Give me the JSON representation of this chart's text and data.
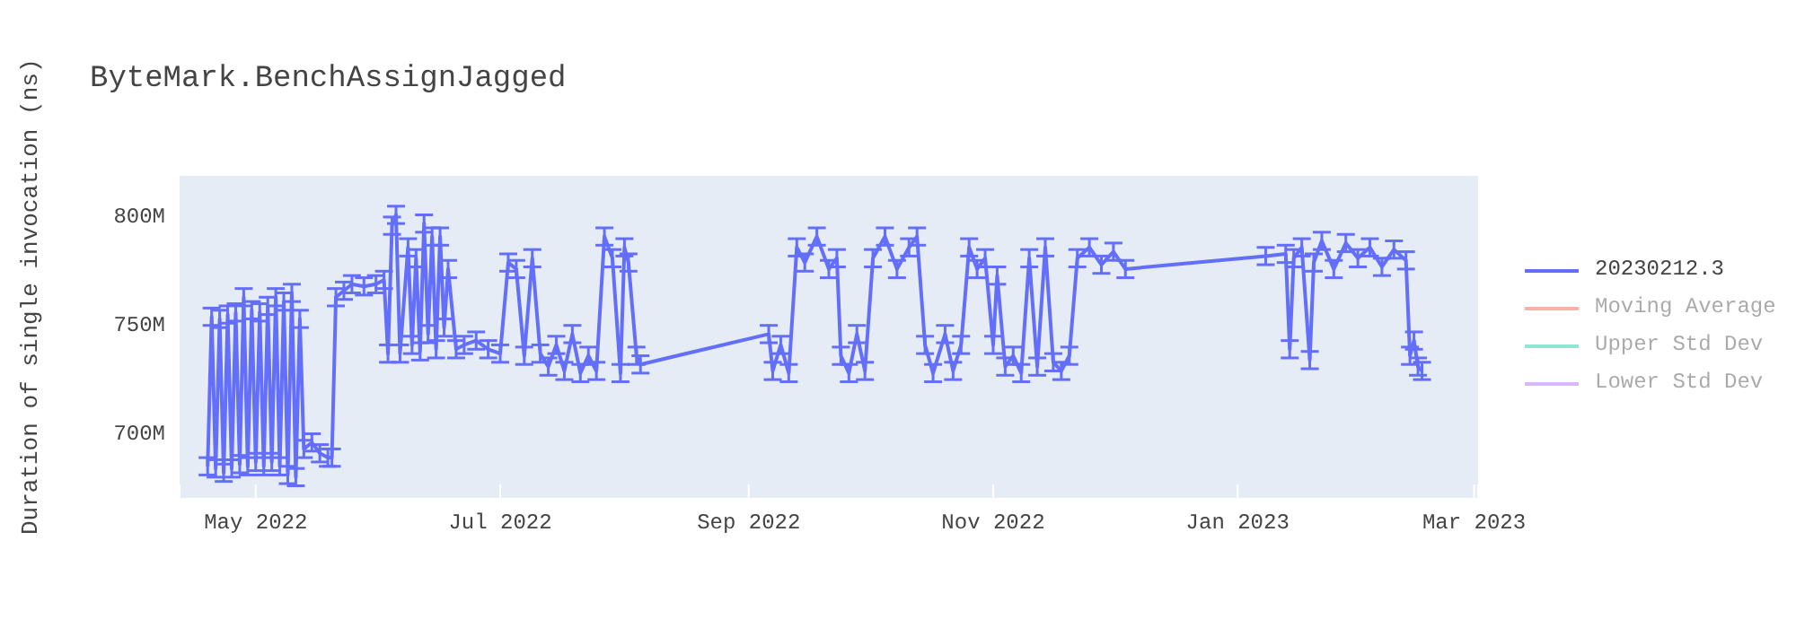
{
  "chart_data": {
    "type": "line",
    "title": "ByteMark.BenchAssignJagged",
    "ylabel": "Duration of single invocation (ns)",
    "x": [
      "2022-04-19",
      "2022-04-20",
      "2022-04-21",
      "2022-04-22",
      "2022-04-23",
      "2022-04-24",
      "2022-04-25",
      "2022-04-26",
      "2022-04-27",
      "2022-04-28",
      "2022-04-29",
      "2022-04-30",
      "2022-05-01",
      "2022-05-02",
      "2022-05-03",
      "2022-05-04",
      "2022-05-05",
      "2022-05-06",
      "2022-05-07",
      "2022-05-08",
      "2022-05-09",
      "2022-05-10",
      "2022-05-11",
      "2022-05-12",
      "2022-05-13",
      "2022-05-15",
      "2022-05-17",
      "2022-05-19",
      "2022-05-20",
      "2022-05-21",
      "2022-05-23",
      "2022-05-25",
      "2022-05-28",
      "2022-05-31",
      "2022-06-02",
      "2022-06-03",
      "2022-06-04",
      "2022-06-05",
      "2022-06-06",
      "2022-06-08",
      "2022-06-09",
      "2022-06-10",
      "2022-06-11",
      "2022-06-12",
      "2022-06-13",
      "2022-06-14",
      "2022-06-15",
      "2022-06-16",
      "2022-06-17",
      "2022-06-18",
      "2022-06-20",
      "2022-06-22",
      "2022-06-25",
      "2022-06-28",
      "2022-07-01",
      "2022-07-03",
      "2022-07-05",
      "2022-07-07",
      "2022-07-09",
      "2022-07-11",
      "2022-07-13",
      "2022-07-15",
      "2022-07-17",
      "2022-07-19",
      "2022-07-21",
      "2022-07-23",
      "2022-07-25",
      "2022-07-27",
      "2022-07-29",
      "2022-07-31",
      "2022-08-01",
      "2022-08-02",
      "2022-08-04",
      "2022-08-05",
      "2022-09-06",
      "2022-09-07",
      "2022-09-09",
      "2022-09-11",
      "2022-09-13",
      "2022-09-15",
      "2022-09-18",
      "2022-09-21",
      "2022-09-23",
      "2022-09-24",
      "2022-09-26",
      "2022-09-28",
      "2022-09-30",
      "2022-10-02",
      "2022-10-05",
      "2022-10-08",
      "2022-10-11",
      "2022-10-13",
      "2022-10-15",
      "2022-10-17",
      "2022-10-20",
      "2022-10-22",
      "2022-10-24",
      "2022-10-26",
      "2022-10-28",
      "2022-10-30",
      "2022-11-01",
      "2022-11-02",
      "2022-11-04",
      "2022-11-06",
      "2022-11-08",
      "2022-11-10",
      "2022-11-12",
      "2022-11-14",
      "2022-11-16",
      "2022-11-18",
      "2022-11-20",
      "2022-11-22",
      "2022-11-25",
      "2022-11-28",
      "2022-12-01",
      "2022-12-04",
      "2023-01-08",
      "2023-01-13",
      "2023-01-14",
      "2023-01-15",
      "2023-01-17",
      "2023-01-19",
      "2023-01-20",
      "2023-01-22",
      "2023-01-25",
      "2023-01-28",
      "2023-01-31",
      "2023-02-03",
      "2023-02-06",
      "2023-02-09",
      "2023-02-12",
      "2023-02-13",
      "2023-02-14",
      "2023-02-15",
      "2023-02-16"
    ],
    "series": [
      {
        "name": "20230212.3",
        "color": "#636efa",
        "values": [
          684000000,
          753000000,
          683000000,
          752000000,
          681000000,
          754000000,
          683000000,
          755000000,
          685000000,
          762000000,
          684000000,
          756000000,
          686000000,
          755000000,
          684000000,
          758000000,
          686000000,
          762000000,
          684000000,
          760000000,
          680000000,
          764000000,
          679000000,
          752000000,
          692000000,
          695000000,
          690000000,
          688000000,
          688000000,
          762000000,
          765000000,
          768000000,
          767000000,
          768000000,
          770000000,
          736000000,
          795000000,
          800000000,
          736000000,
          785000000,
          740000000,
          780000000,
          737000000,
          796000000,
          745000000,
          790000000,
          738000000,
          790000000,
          748000000,
          775000000,
          738000000,
          740000000,
          742000000,
          738000000,
          736000000,
          778000000,
          775000000,
          735000000,
          780000000,
          736000000,
          730000000,
          740000000,
          728000000,
          745000000,
          727000000,
          735000000,
          728000000,
          790000000,
          780000000,
          727000000,
          785000000,
          778000000,
          735000000,
          731000000,
          745000000,
          728000000,
          740000000,
          727000000,
          785000000,
          778000000,
          790000000,
          775000000,
          780000000,
          735000000,
          727000000,
          745000000,
          728000000,
          780000000,
          790000000,
          775000000,
          785000000,
          790000000,
          740000000,
          727000000,
          745000000,
          728000000,
          740000000,
          785000000,
          775000000,
          780000000,
          740000000,
          772000000,
          730000000,
          735000000,
          727000000,
          780000000,
          730000000,
          785000000,
          732000000,
          728000000,
          735000000,
          780000000,
          785000000,
          777000000,
          783000000,
          775000000,
          781000000,
          782000000,
          738000000,
          780000000,
          785000000,
          733000000,
          778000000,
          788000000,
          775000000,
          787000000,
          780000000,
          785000000,
          776000000,
          784000000,
          779000000,
          735000000,
          742000000,
          730000000,
          728000000
        ],
        "errors": [
          4000000,
          4000000,
          4000000,
          4000000,
          4000000,
          4000000,
          4000000,
          4000000,
          4000000,
          4000000,
          4000000,
          4000000,
          4000000,
          4000000,
          4000000,
          4000000,
          4000000,
          4000000,
          4000000,
          4000000,
          4000000,
          4000000,
          4000000,
          4000000,
          4000000,
          4000000,
          4000000,
          4000000,
          4000000,
          4000000,
          4000000,
          4000000,
          4000000,
          4000000,
          4000000,
          4000000,
          4000000,
          4000000,
          4000000,
          4000000,
          4000000,
          4000000,
          4000000,
          4000000,
          4000000,
          4000000,
          4000000,
          4000000,
          4000000,
          4000000,
          4000000,
          4000000,
          4000000,
          4000000,
          4000000,
          4000000,
          4000000,
          4000000,
          4000000,
          4000000,
          4000000,
          4000000,
          4000000,
          4000000,
          4000000,
          4000000,
          4000000,
          4000000,
          4000000,
          4000000,
          4000000,
          4000000,
          4000000,
          4000000,
          4000000,
          4000000,
          4000000,
          4000000,
          4000000,
          4000000,
          4000000,
          4000000,
          4000000,
          4000000,
          4000000,
          4000000,
          4000000,
          4000000,
          4000000,
          4000000,
          4000000,
          4000000,
          4000000,
          4000000,
          4000000,
          4000000,
          4000000,
          4000000,
          4000000,
          4000000,
          4000000,
          4000000,
          4000000,
          4000000,
          4000000,
          4000000,
          4000000,
          4000000,
          4000000,
          4000000,
          4000000,
          4000000,
          4000000,
          4000000,
          4000000,
          4000000,
          4000000,
          4000000,
          4000000,
          4000000,
          4000000,
          4000000,
          4000000,
          4000000,
          4000000,
          4000000,
          4000000,
          4000000,
          4000000,
          4000000,
          4000000,
          4000000,
          4000000,
          4000000,
          4000000
        ]
      },
      {
        "name": "Moving Average",
        "color": "#ef553b",
        "values": [
          null,
          null,
          null,
          null,
          null,
          null,
          null,
          null,
          null,
          null,
          null,
          null,
          null,
          null,
          null,
          null,
          null,
          null,
          null,
          null,
          null,
          null,
          null,
          null,
          null,
          null,
          null,
          null,
          null,
          null,
          null,
          null,
          null,
          null,
          null,
          null,
          null,
          null,
          null,
          null,
          null,
          null,
          null,
          null,
          null,
          null,
          null,
          null,
          null,
          null,
          null,
          null,
          null,
          null,
          null,
          null,
          null,
          null,
          null,
          null,
          null,
          null,
          null,
          null,
          null,
          null,
          null,
          null,
          null,
          null,
          null,
          null,
          null,
          null,
          null,
          null,
          null,
          null,
          null,
          null,
          null,
          null,
          null,
          null,
          null,
          null,
          null,
          null,
          null,
          null,
          null,
          null,
          null,
          null,
          null,
          null,
          null,
          null,
          null,
          null,
          null,
          null,
          null,
          null,
          null,
          null,
          null,
          null,
          null,
          null,
          null,
          null,
          null,
          null,
          null,
          null,
          null,
          null,
          null,
          null,
          null,
          null,
          null,
          null,
          null,
          null,
          null,
          null,
          null,
          null,
          null,
          null,
          null,
          null,
          null
        ]
      },
      {
        "name": "Upper Std Dev",
        "color": "#00cc96",
        "values": [
          null,
          null,
          null,
          null,
          null,
          null,
          null,
          null,
          null,
          null,
          null,
          null,
          null,
          null,
          null,
          null,
          null,
          null,
          null,
          null,
          null,
          null,
          null,
          null,
          null,
          null,
          null,
          null,
          null,
          null,
          null,
          null,
          null,
          null,
          null,
          null,
          null,
          null,
          null,
          null,
          null,
          null,
          null,
          null,
          null,
          null,
          null,
          null,
          null,
          null,
          null,
          null,
          null,
          null,
          null,
          null,
          null,
          null,
          null,
          null,
          null,
          null,
          null,
          null,
          null,
          null,
          null,
          null,
          null,
          null,
          null,
          null,
          null,
          null,
          null,
          null,
          null,
          null,
          null,
          null,
          null,
          null,
          null,
          null,
          null,
          null,
          null,
          null,
          null,
          null,
          null,
          null,
          null,
          null,
          null,
          null,
          null,
          null,
          null,
          null,
          null,
          null,
          null,
          null,
          null,
          null,
          null,
          null,
          null,
          null,
          null,
          null,
          null,
          null,
          null,
          null,
          null,
          null,
          null,
          null,
          null,
          null,
          null,
          null,
          null,
          null,
          null,
          null,
          null,
          null,
          null,
          null,
          null,
          null,
          null
        ]
      },
      {
        "name": "Lower Std Dev",
        "color": "#ab63fa",
        "values": [
          null,
          null,
          null,
          null,
          null,
          null,
          null,
          null,
          null,
          null,
          null,
          null,
          null,
          null,
          null,
          null,
          null,
          null,
          null,
          null,
          null,
          null,
          null,
          null,
          null,
          null,
          null,
          null,
          null,
          null,
          null,
          null,
          null,
          null,
          null,
          null,
          null,
          null,
          null,
          null,
          null,
          null,
          null,
          null,
          null,
          null,
          null,
          null,
          null,
          null,
          null,
          null,
          null,
          null,
          null,
          null,
          null,
          null,
          null,
          null,
          null,
          null,
          null,
          null,
          null,
          null,
          null,
          null,
          null,
          null,
          null,
          null,
          null,
          null,
          null,
          null,
          null,
          null,
          null,
          null,
          null,
          null,
          null,
          null,
          null,
          null,
          null,
          null,
          null,
          null,
          null,
          null,
          null,
          null,
          null,
          null,
          null,
          null,
          null,
          null,
          null,
          null,
          null,
          null,
          null,
          null,
          null,
          null,
          null,
          null,
          null,
          null,
          null,
          null,
          null,
          null,
          null,
          null,
          null,
          null,
          null,
          null,
          null,
          null,
          null,
          null,
          null,
          null,
          null,
          null,
          null,
          null,
          null,
          null,
          null
        ]
      }
    ],
    "xlim": [
      "2022-04-12",
      "2023-03-02"
    ],
    "xticks": [
      {
        "value": "2022-05-01",
        "label": "May 2022"
      },
      {
        "value": "2022-07-01",
        "label": "Jul 2022"
      },
      {
        "value": "2022-09-01",
        "label": "Sep 2022"
      },
      {
        "value": "2022-11-01",
        "label": "Nov 2022"
      },
      {
        "value": "2023-01-01",
        "label": "Jan 2023"
      },
      {
        "value": "2023-03-01",
        "label": "Mar 2023"
      }
    ],
    "ylim": [
      669000000,
      818000000
    ],
    "yticks": [
      {
        "value": 700000000,
        "label": "700M"
      },
      {
        "value": 750000000,
        "label": "750M"
      },
      {
        "value": 800000000,
        "label": "800M"
      }
    ],
    "grid": true,
    "legend": "top right",
    "marker": "none",
    "line_style": "solid"
  }
}
